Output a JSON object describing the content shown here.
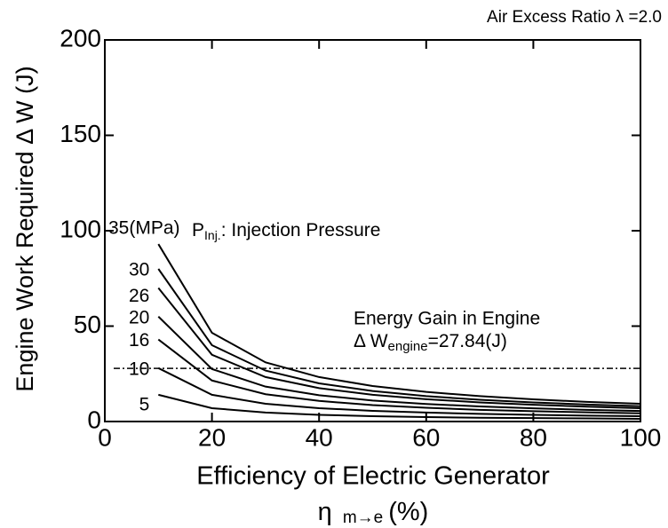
{
  "chart_data": {
    "type": "line",
    "title": "Air Excess Ratio λ =2.0",
    "ylabel": "Engine Work Required Δ W (J)",
    "xlabel": {
      "line1": "Efficiency of Electric Generator",
      "symbol": "η",
      "sub": "m→e",
      "unit": "(%)"
    },
    "legend_note": {
      "text": "P",
      "sub": "Inj.",
      "rest": ": Injection Pressure"
    },
    "x": [
      10,
      20,
      30,
      40,
      50,
      60,
      70,
      80,
      90,
      100
    ],
    "xlim": [
      0,
      100
    ],
    "xticks": [
      0,
      20,
      40,
      60,
      80,
      100
    ],
    "ylim": [
      0,
      200
    ],
    "yticks": [
      0,
      50,
      100,
      150,
      200
    ],
    "color": "#000000",
    "series": [
      {
        "name": "35(MPa)",
        "values": [
          93,
          46.5,
          31,
          23.3,
          18.6,
          15.5,
          13.3,
          11.6,
          10.3,
          9.3
        ]
      },
      {
        "name": "30",
        "values": [
          80,
          40,
          26.7,
          20,
          16,
          13.3,
          11.4,
          10,
          8.9,
          8
        ]
      },
      {
        "name": "26",
        "values": [
          70,
          35,
          23.3,
          17.5,
          14,
          11.7,
          10,
          8.8,
          7.8,
          7
        ]
      },
      {
        "name": "20",
        "values": [
          55,
          27.5,
          18.3,
          13.8,
          11,
          9.2,
          7.9,
          6.9,
          6.1,
          5.5
        ]
      },
      {
        "name": "16",
        "values": [
          43,
          21.5,
          14.3,
          10.8,
          8.6,
          7.2,
          6.1,
          5.4,
          4.8,
          4.3
        ]
      },
      {
        "name": "10",
        "values": [
          28,
          14,
          9.3,
          7,
          5.6,
          4.7,
          4,
          3.5,
          3.1,
          2.8
        ]
      },
      {
        "name": "5",
        "values": [
          14,
          7,
          4.7,
          3.5,
          2.8,
          2.3,
          2,
          1.8,
          1.6,
          1.4
        ]
      }
    ],
    "reference_line": {
      "value": 27.84,
      "title": "Energy Gain in Engine",
      "prefix": "Δ W",
      "sub": "engine",
      "label": "=27.84(J)"
    }
  }
}
